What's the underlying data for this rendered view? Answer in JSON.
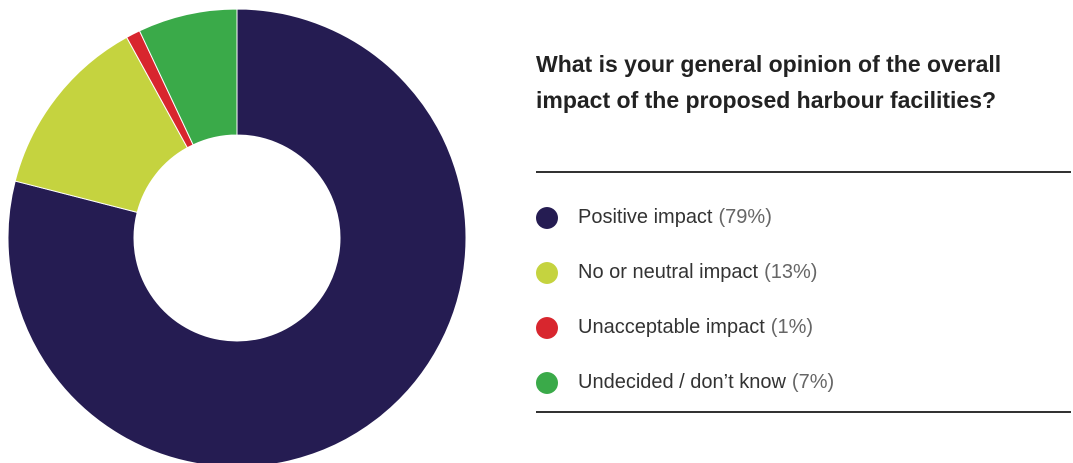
{
  "chart_data": {
    "type": "pie",
    "title": "What is your general opinion of the overall impact of the proposed harbour facilities?",
    "categories": [
      "Positive impact",
      "No or neutral impact",
      "Unacceptable impact",
      "Undecided / don’t know"
    ],
    "values": [
      79,
      13,
      1,
      7
    ],
    "value_labels": [
      "(79%)",
      "(13%)",
      "(1%)",
      "(7%)"
    ],
    "colors": [
      "#251c52",
      "#c5d33f",
      "#d8262e",
      "#3aaa49"
    ]
  }
}
